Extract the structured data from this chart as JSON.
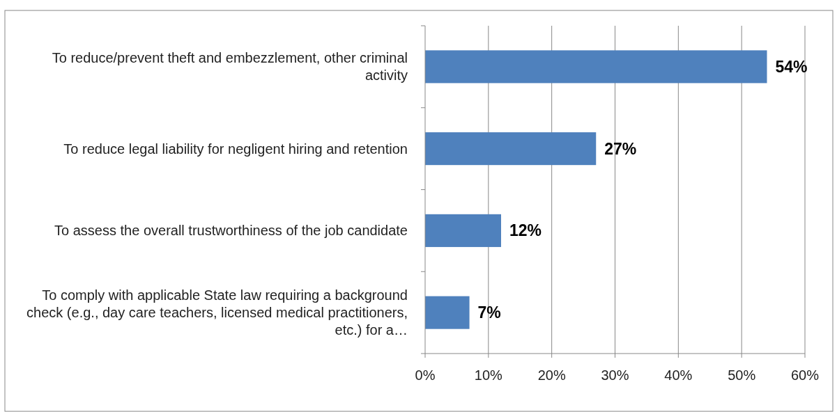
{
  "chart_data": {
    "type": "bar",
    "orientation": "horizontal",
    "categories": [
      "To reduce/prevent theft and embezzlement, other criminal activity",
      "To reduce legal liability for negligent hiring and retention",
      "To assess the overall trustworthiness of the job candidate",
      "To comply with applicable State law requiring a background check (e.g.,  day care teachers, licensed medical practitioners, etc.) for a…"
    ],
    "series": [
      {
        "color": "#4f81bd",
        "values": [
          54,
          27,
          12,
          7
        ]
      }
    ],
    "value_labels": [
      "54%",
      "27%",
      "12%",
      "7%"
    ],
    "xlim": [
      0,
      60
    ],
    "xticks": [
      {
        "value": 0,
        "label": "0%"
      },
      {
        "value": 10,
        "label": "10%"
      },
      {
        "value": 20,
        "label": "20%"
      },
      {
        "value": 30,
        "label": "30%"
      },
      {
        "value": 40,
        "label": "40%"
      },
      {
        "value": 50,
        "label": "50%"
      },
      {
        "value": 60,
        "label": "60%"
      }
    ],
    "grid": "x"
  }
}
